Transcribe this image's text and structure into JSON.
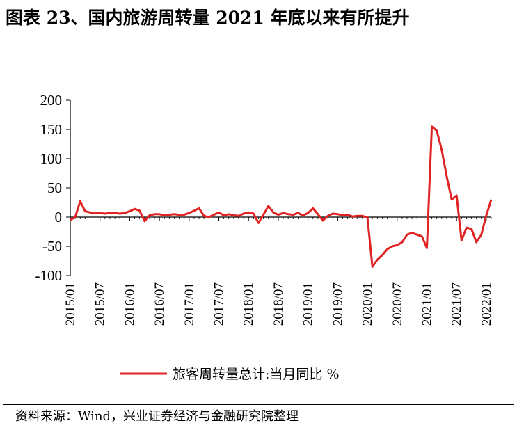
{
  "figure": {
    "title": "图表 23、国内旅游周转量 2021 年底以来有所提升",
    "source": "资料来源：Wind，兴业证券经济与金融研究院整理"
  },
  "chart_data": {
    "type": "line",
    "xlabel": "",
    "ylabel": "",
    "ylim": [
      -100,
      200
    ],
    "yticks": [
      "200",
      "150",
      "100",
      "50",
      "0",
      "-50",
      "-100"
    ],
    "xtick_labels": [
      "2015/01",
      "2015/07",
      "2016/01",
      "2016/07",
      "2017/01",
      "2017/07",
      "2018/01",
      "2018/07",
      "2019/01",
      "2019/07",
      "2020/01",
      "2020/07",
      "2021/01",
      "2021/07",
      "2022/01"
    ],
    "legend": {
      "position": "bottom",
      "entries": [
        "旅客周转量总计:当月同比 %"
      ]
    },
    "grid": false,
    "series": [
      {
        "name": "旅客周转量总计:当月同比 %",
        "color": "#e02424",
        "x": [
          "2015/01",
          "2015/02",
          "2015/03",
          "2015/04",
          "2015/05",
          "2015/06",
          "2015/07",
          "2015/08",
          "2015/09",
          "2015/10",
          "2015/11",
          "2015/12",
          "2016/01",
          "2016/02",
          "2016/03",
          "2016/04",
          "2016/05",
          "2016/06",
          "2016/07",
          "2016/08",
          "2016/09",
          "2016/10",
          "2016/11",
          "2016/12",
          "2017/01",
          "2017/02",
          "2017/03",
          "2017/04",
          "2017/05",
          "2017/06",
          "2017/07",
          "2017/08",
          "2017/09",
          "2017/10",
          "2017/11",
          "2017/12",
          "2018/01",
          "2018/02",
          "2018/03",
          "2018/04",
          "2018/05",
          "2018/06",
          "2018/07",
          "2018/08",
          "2018/09",
          "2018/10",
          "2018/11",
          "2018/12",
          "2019/01",
          "2019/02",
          "2019/03",
          "2019/04",
          "2019/05",
          "2019/06",
          "2019/07",
          "2019/08",
          "2019/09",
          "2019/10",
          "2019/11",
          "2019/12",
          "2020/01",
          "2020/02",
          "2020/03",
          "2020/04",
          "2020/05",
          "2020/06",
          "2020/07",
          "2020/08",
          "2020/09",
          "2020/10",
          "2020/11",
          "2020/12",
          "2021/01",
          "2021/02",
          "2021/03",
          "2021/04",
          "2021/05",
          "2021/06",
          "2021/07",
          "2021/08",
          "2021/09",
          "2021/10",
          "2021/11",
          "2021/12",
          "2022/01",
          "2022/02"
        ],
        "values": [
          -5,
          0,
          27,
          10,
          8,
          7,
          7,
          6,
          7,
          7,
          6,
          7,
          10,
          14,
          11,
          -7,
          3,
          5,
          5,
          3,
          4,
          5,
          4,
          4,
          7,
          11,
          15,
          2,
          0,
          4,
          8,
          3,
          5,
          3,
          2,
          6,
          8,
          6,
          -10,
          4,
          19,
          8,
          4,
          7,
          5,
          4,
          7,
          3,
          7,
          15,
          5,
          -6,
          2,
          6,
          5,
          3,
          4,
          1,
          2,
          2,
          -1,
          -85,
          -73,
          -65,
          -55,
          -50,
          -48,
          -43,
          -30,
          -27,
          -30,
          -33,
          -53,
          155,
          148,
          115,
          70,
          30,
          37,
          -40,
          -18,
          -20,
          -43,
          -30,
          3,
          30
        ]
      }
    ]
  }
}
